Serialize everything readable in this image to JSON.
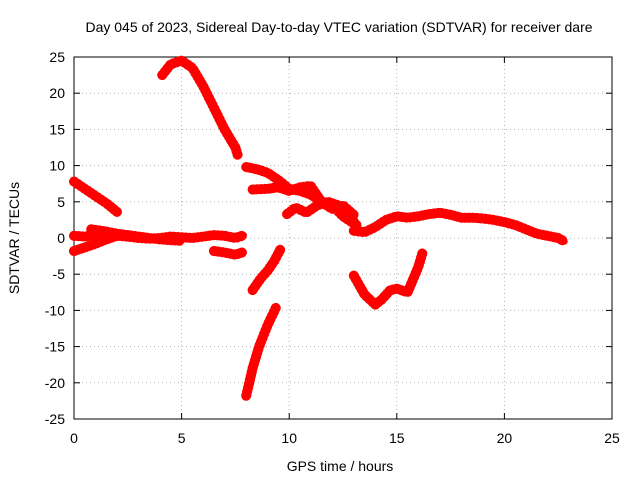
{
  "chart_data": {
    "type": "scatter",
    "title": "Day 045 of 2023, Sidereal Day-to-day VTEC variation (SDTVAR) for receiver dare",
    "xlabel": "GPS time / hours",
    "ylabel": "SDTVAR / TECUs",
    "xlim": [
      0,
      25
    ],
    "ylim": [
      -25,
      25
    ],
    "xticks": [
      "0",
      "5",
      "10",
      "15",
      "20",
      "25"
    ],
    "yticks": [
      "-25",
      "-20",
      "-15",
      "-10",
      "-5",
      "0",
      "5",
      "10",
      "15",
      "20",
      "25"
    ],
    "grid": true,
    "series_color": "#ff0000",
    "series": [
      {
        "name": "arc-1",
        "x": [
          0.0,
          0.5,
          1.0,
          1.5,
          2.0
        ],
        "y": [
          7.8,
          6.8,
          5.8,
          4.8,
          3.6
        ]
      },
      {
        "name": "arc-2",
        "x": [
          0.0,
          0.5,
          1.0,
          1.5,
          2.0,
          2.5,
          3.0,
          3.5,
          4.0,
          4.5,
          5.0,
          5.5,
          6.0,
          6.5,
          7.0,
          7.5,
          7.9
        ],
        "y": [
          0.3,
          0.2,
          0.4,
          0.5,
          0.3,
          0.2,
          0.0,
          -0.1,
          0.0,
          0.2,
          0.1,
          0.0,
          0.2,
          0.4,
          0.3,
          0.0,
          0.4
        ]
      },
      {
        "name": "arc-3",
        "x": [
          0.0,
          0.5,
          1.0,
          1.5,
          2.0,
          2.5
        ],
        "y": [
          -1.8,
          -1.3,
          -0.8,
          -0.2,
          0.3,
          0.4
        ]
      },
      {
        "name": "arc-4",
        "x": [
          0.8,
          1.5,
          2.0,
          2.5,
          3.0,
          3.5,
          4.0,
          4.5,
          5.0
        ],
        "y": [
          1.2,
          0.9,
          0.6,
          0.4,
          0.2,
          0.0,
          -0.2,
          -0.3,
          -0.4
        ]
      },
      {
        "name": "arc-5",
        "x": [
          6.5,
          7.0,
          7.5,
          7.8
        ],
        "y": [
          -1.8,
          -2.0,
          -2.3,
          -2.0
        ]
      },
      {
        "name": "arc-6",
        "x": [
          4.1,
          4.5,
          5.0,
          5.5,
          6.0,
          6.5,
          7.0,
          7.5,
          7.6
        ],
        "y": [
          22.5,
          24.0,
          24.5,
          23.5,
          21.0,
          18.0,
          15.0,
          12.5,
          11.5
        ]
      },
      {
        "name": "arc-7",
        "x": [
          8.0,
          8.3,
          8.6,
          9.0,
          9.4
        ],
        "y": [
          -21.8,
          -18.0,
          -15.0,
          -12.0,
          -9.5
        ]
      },
      {
        "name": "arc-8",
        "x": [
          8.3,
          8.7,
          9.0,
          9.3,
          9.6
        ],
        "y": [
          -7.2,
          -5.5,
          -4.5,
          -3.2,
          -1.5
        ]
      },
      {
        "name": "arc-9",
        "x": [
          8.0,
          8.5,
          9.0,
          9.5,
          10.0,
          10.5,
          11.0,
          11.5,
          12.0,
          12.5,
          13.0
        ],
        "y": [
          9.8,
          9.5,
          9.0,
          8.0,
          6.8,
          6.5,
          6.0,
          5.0,
          4.5,
          3.0,
          2.0
        ]
      },
      {
        "name": "arc-10",
        "x": [
          8.3,
          9.0,
          9.5,
          10.0,
          10.5,
          11.0,
          11.5,
          12.0,
          12.5,
          13.0
        ],
        "y": [
          6.7,
          6.8,
          7.0,
          6.5,
          7.0,
          7.2,
          5.0,
          4.0,
          4.5,
          3.2
        ]
      },
      {
        "name": "arc-11",
        "x": [
          9.9,
          10.3,
          10.8,
          11.3,
          11.8,
          12.3,
          12.8,
          13.2
        ],
        "y": [
          3.3,
          4.2,
          3.5,
          4.5,
          5.0,
          4.5,
          3.0,
          1.5
        ]
      },
      {
        "name": "arc-12",
        "x": [
          13.0,
          13.5,
          14.0,
          14.5,
          15.0,
          15.5,
          16.0,
          16.5,
          17.0,
          17.5,
          18.0,
          18.5,
          19.0,
          19.5,
          20.0,
          20.5,
          21.0,
          21.5,
          22.0,
          22.5,
          22.8
        ],
        "y": [
          1.0,
          0.8,
          1.5,
          2.5,
          3.0,
          2.8,
          3.0,
          3.3,
          3.5,
          3.2,
          2.8,
          2.8,
          2.7,
          2.5,
          2.2,
          1.8,
          1.2,
          0.6,
          0.3,
          0.0,
          -0.5
        ]
      },
      {
        "name": "arc-13",
        "x": [
          13.0,
          13.5,
          14.0,
          14.3,
          14.7,
          15.0,
          15.5,
          16.0,
          16.2
        ],
        "y": [
          -5.2,
          -7.8,
          -9.2,
          -8.5,
          -7.2,
          -7.0,
          -7.5,
          -4.0,
          -2.0
        ]
      }
    ]
  }
}
